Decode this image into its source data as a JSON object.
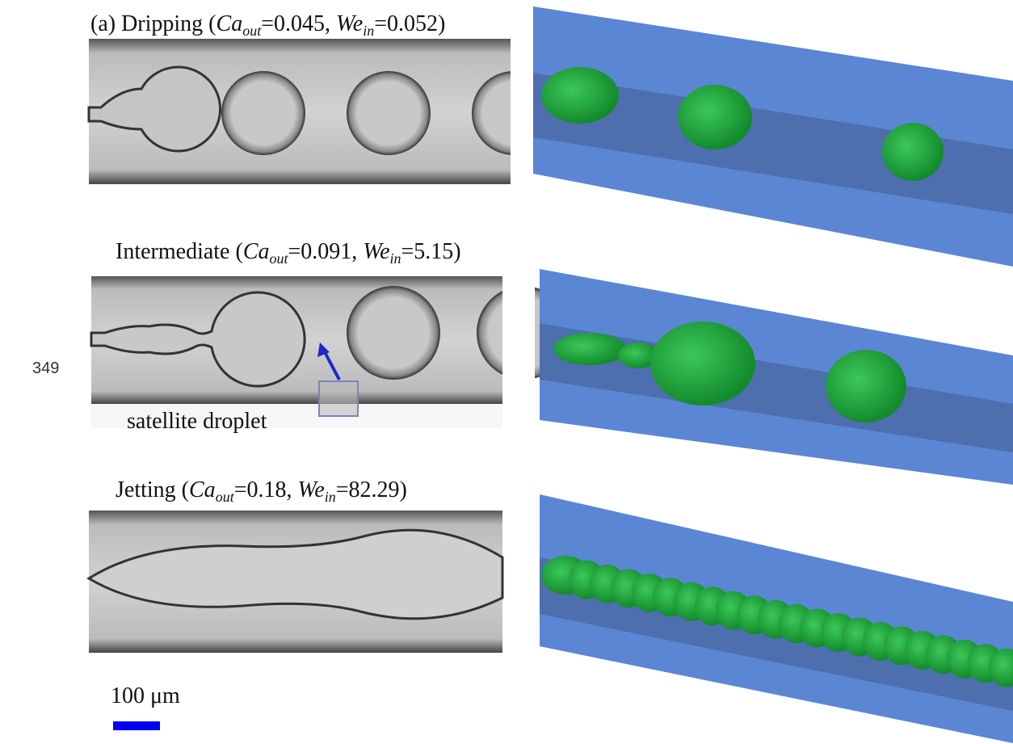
{
  "page_number": "349",
  "panels": [
    {
      "parts": [
        "(a) Dripping (",
        "Ca",
        "out",
        "=0.045, ",
        "We",
        "in",
        "=0.052)"
      ]
    },
    {
      "parts": [
        "Intermediate (",
        "Ca",
        "out",
        "=0.091, ",
        "We",
        "in",
        "=5.15)"
      ],
      "annotation": "satellite droplet"
    },
    {
      "parts": [
        "Jetting (",
        "Ca",
        "out",
        "=0.18, ",
        "We",
        "in",
        "=82.29)"
      ]
    }
  ],
  "scale_bar": "100 μm"
}
